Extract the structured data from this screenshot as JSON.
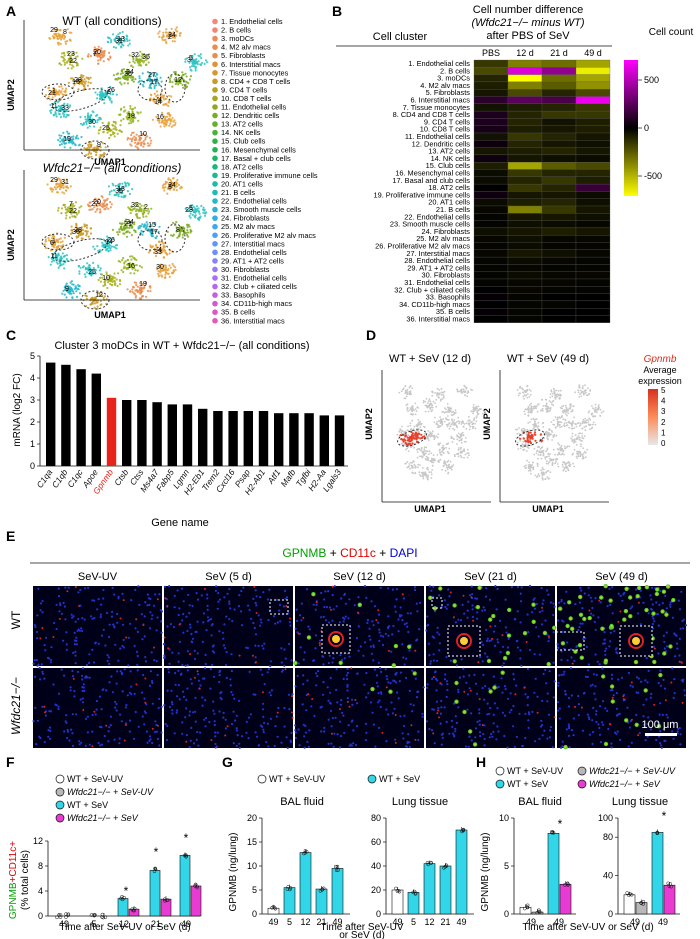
{
  "panels": {
    "A": "A",
    "B": "B",
    "C": "C",
    "D": "D",
    "E": "E",
    "F": "F",
    "G": "G",
    "H": "H"
  },
  "panelA": {
    "title_top": "WT (all conditions)",
    "title_bottom": "Wfdc21−/− (all conditions)",
    "xlabel": "UMAP1",
    "ylabel": "UMAP2",
    "legend": [
      "1. Endothelial cells",
      "2. B cells",
      "3. moDCs",
      "4. M2 alv macs",
      "5. Fibroblasts",
      "6. Interstitial macs",
      "7. Tissue monocytes",
      "8. CD4 + CD8 T cells",
      "9. CD4 T cells",
      "10. CD8 T cells",
      "11. Endothelial cells",
      "12. Dendritic cells",
      "13. AT2 cells",
      "14. NK cells",
      "15. Club cells",
      "16. Mesenchymal cells",
      "17. Basal + club cells",
      "18. AT2 cells",
      "19. Proliferative immune cells",
      "20. AT1 cells",
      "21. B cells",
      "22. Endothelial cells",
      "23. Smooth muscle cells",
      "24. Fibroblasts",
      "25. M2 alv macs",
      "26. Proliferative M2 alv macs",
      "27. Interstitial macs",
      "28. Endothelial cells",
      "29. AT1 + AT2 cells",
      "30. Fibroblasts",
      "31. Endothelial cells",
      "32. Club + ciliated cells",
      "33. Basophils",
      "34. CD11b-high macs",
      "35. B cells",
      "36. Interstitial macs"
    ],
    "legend_colors": [
      "#f4877a",
      "#f0876c",
      "#ec8a5e",
      "#e98d4f",
      "#e59043",
      "#df9338",
      "#d6972d",
      "#c99b26",
      "#b9a022",
      "#a7a41f",
      "#93a81e",
      "#7eab22",
      "#67ae2b",
      "#4db135",
      "#2fb443",
      "#1db653",
      "#1ab866",
      "#1ab97b",
      "#1cba90",
      "#1fbaa5",
      "#22b9b8",
      "#25b7c9",
      "#2ab3d7",
      "#33aee3",
      "#3fa8ec",
      "#4da0f3",
      "#5e97f7",
      "#718dfa",
      "#8483fb",
      "#9678f9",
      "#a86ef4",
      "#b865ed",
      "#c65ee3",
      "#d259d6",
      "#dc56c8",
      "#e357b8"
    ],
    "labels_top": [
      "29",
      "13",
      "32",
      "24",
      "5",
      "22",
      "20",
      "17",
      "28",
      "34",
      "1",
      "26",
      "4",
      "11",
      "18",
      "16",
      "30",
      "25",
      "10",
      "19",
      "9",
      "12",
      "8",
      "31",
      "35",
      "2",
      "3",
      "23",
      "7",
      "27",
      "15",
      "36",
      "21",
      "6",
      "14",
      "33"
    ],
    "labels_bottom": [
      "29",
      "13",
      "32",
      "24",
      "5",
      "22",
      "20",
      "17",
      "28",
      "34",
      "1",
      "26",
      "4",
      "11",
      "16",
      "30",
      "25",
      "10",
      "19",
      "9",
      "12",
      "8",
      "31",
      "35",
      "2",
      "3",
      "23",
      "7",
      "27",
      "15",
      "36",
      "21",
      "6",
      "14",
      "33"
    ]
  },
  "panelB": {
    "header_cluster": "Cell cluster",
    "header_diff_line1": "Cell number difference",
    "header_diff_line2": "(Wfdc21−/− minus WT)",
    "header_diff_line3": "after PBS of SeV",
    "header_count": "Cell count",
    "columns": [
      "PBS",
      "12 d",
      "21 d",
      "49 d"
    ],
    "scale_ticks": [
      "500",
      "0",
      "-500"
    ]
  },
  "panelC": {
    "title": "Cluster 3 moDCs in WT + Wfdc21−/− (all conditions)",
    "ylabel": "mRNA (log2 FC)",
    "xlabel": "Gene name",
    "yticks": [
      "0",
      "1",
      "2",
      "3",
      "4",
      "5"
    ]
  },
  "panelD": {
    "title_left": "WT + SeV (12 d)",
    "title_right": "WT + SeV (49 d)",
    "xlabel": "UMAP1",
    "ylabel": "UMAP2",
    "legend_title": "Gpnmb",
    "legend_sub1": "Average",
    "legend_sub2": "expression",
    "legend_ticks": [
      "5",
      "4",
      "3",
      "2",
      "1",
      "0"
    ]
  },
  "panelE": {
    "title_g": "GPNMB",
    "title_plus1": " + ",
    "title_r": "CD11c",
    "title_plus2": " + ",
    "title_b": "DAPI",
    "columns": [
      "SeV-UV",
      "SeV (5 d)",
      "SeV (12 d)",
      "SeV (21 d)",
      "SeV (49 d)"
    ],
    "rows": [
      "WT",
      "Wfdc21−/−"
    ],
    "scalebar": "100 μm"
  },
  "panelF": {
    "legend": [
      "WT + SeV-UV",
      "Wfdc21−/− + SeV-UV",
      "WT + SeV",
      "Wfdc21−/− + SeV"
    ],
    "ylabel_g": "GPNMB",
    "ylabel_r": "+CD11c+",
    "ylabel_rest": "(% total cells)",
    "xlabel": "Time after SeV-UV or SeV (d)",
    "yticks": [
      "0",
      "4",
      "8",
      "12"
    ],
    "sig": [
      "*",
      "*",
      "*"
    ]
  },
  "panelG": {
    "legend": [
      "WT + SeV-UV",
      "WT + SeV"
    ],
    "sub_left": "BAL fluid",
    "sub_right": "Lung tissue",
    "ylabel": "GPNMB (ng/lung)",
    "xlabel_line1": "Time after SeV-UV",
    "xlabel_line2": "or SeV (d)",
    "yticks_left": [
      "0",
      "5",
      "10",
      "15",
      "20"
    ],
    "yticks_right": [
      "0",
      "20",
      "40",
      "60",
      "80"
    ]
  },
  "panelH": {
    "legend": [
      "WT + SeV-UV",
      "Wfdc21−/− + SeV-UV",
      "WT + SeV",
      "Wfdc21−/− + SeV"
    ],
    "sub_left": "BAL fluid",
    "sub_right": "Lung tissue",
    "ylabel": "GPNMB (ng/lung)",
    "xlabel": "Time after SeV-UV or SeV (d)",
    "yticks_left": [
      "0",
      "5",
      "10"
    ],
    "yticks_right": [
      "0",
      "40",
      "80",
      "100"
    ],
    "sig": [
      "*",
      "*"
    ]
  },
  "chart_data": [
    {
      "type": "heatmap",
      "panel": "B",
      "rows": [
        "1. Endothelial cells",
        "2. B cells",
        "3. moDCs",
        "4. M2 alv macs",
        "5. Fibroblasts",
        "6. Interstitial macs",
        "7. Tissue monocytes",
        "8. CD4 and CD8 T cells",
        "9. CD4 T cells",
        "10. CD8 T cells",
        "11. Endothelial cells",
        "12. Dendritic cells",
        "13. AT2 cells",
        "14. NK cells",
        "15. Club cells",
        "16. Mesenchymal cells",
        "17. Basal and club cells",
        "18. AT2 cells",
        "19. Proliferative immune cells",
        "20. AT1 cells",
        "21. B cells",
        "22. Endothelial cells",
        "23. Smooth muscle cells",
        "24. Fibroblasts",
        "25. M2 alv macs",
        "26. Proliferative M2 alv macs",
        "27. Interstitial macs",
        "28. Endothelial cells",
        "29. AT1 + AT2 cells",
        "30. Fibroblasts",
        "31. Endothelial cells",
        "32. Club + ciliated cells",
        "33. Basophils",
        "34. CD11b-high macs",
        "35. B cells",
        "36. Interstitial macs"
      ],
      "columns": [
        "PBS",
        "12 d",
        "21 d",
        "49 d"
      ],
      "values": [
        [
          -150,
          -350,
          -300,
          -450
        ],
        [
          -200,
          600,
          400,
          -650
        ],
        [
          -100,
          -700,
          -300,
          -450
        ],
        [
          -80,
          -350,
          -250,
          -400
        ],
        [
          -60,
          -200,
          -100,
          -200
        ],
        [
          120,
          250,
          200,
          650
        ],
        [
          -50,
          -80,
          -100,
          -150
        ],
        [
          80,
          -100,
          -150,
          -150
        ],
        [
          80,
          -100,
          -50,
          -80
        ],
        [
          60,
          -80,
          -60,
          -80
        ],
        [
          -50,
          -150,
          -100,
          -60
        ],
        [
          30,
          -100,
          -60,
          -40
        ],
        [
          -60,
          -80,
          -100,
          -60
        ],
        [
          40,
          -60,
          -40,
          -30
        ],
        [
          -80,
          -450,
          -250,
          -200
        ],
        [
          -30,
          -150,
          -100,
          -100
        ],
        [
          -30,
          -100,
          -150,
          -80
        ],
        [
          0,
          -150,
          -100,
          150
        ],
        [
          40,
          -60,
          -60,
          -30
        ],
        [
          -30,
          -80,
          -100,
          -40
        ],
        [
          -20,
          -350,
          -150,
          -60
        ],
        [
          -10,
          -60,
          -60,
          -40
        ],
        [
          -10,
          -40,
          -30,
          -20
        ],
        [
          -40,
          -60,
          -80,
          -60
        ],
        [
          -20,
          -40,
          -20,
          -20
        ],
        [
          -10,
          -30,
          -10,
          -10
        ],
        [
          -20,
          -60,
          -40,
          -20
        ],
        [
          -10,
          -30,
          -20,
          -10
        ],
        [
          -10,
          -20,
          -10,
          -10
        ],
        [
          -10,
          -30,
          -20,
          -20
        ],
        [
          -10,
          -20,
          -20,
          -10
        ],
        [
          0,
          -20,
          -10,
          -10
        ],
        [
          10,
          -10,
          0,
          0
        ],
        [
          0,
          -10,
          -10,
          0
        ],
        [
          10,
          -10,
          0,
          0
        ],
        [
          0,
          -10,
          0,
          0
        ]
      ],
      "scale": [
        -700,
        700
      ]
    },
    {
      "type": "bar",
      "panel": "C",
      "categories": [
        "C1qa",
        "C1qb",
        "C1qc",
        "Apoe",
        "Gpnmb",
        "Ctsb",
        "Ctss",
        "Ms4a7",
        "Fabp5",
        "Lgmn",
        "H2-Eb1",
        "Trem2",
        "Cxcl16",
        "Psap",
        "H2-Ab1",
        "Atf1",
        "Mafb",
        "Tgfbi",
        "H2-Aa",
        "Lgals3"
      ],
      "highlight": "Gpnmb",
      "values": [
        4.7,
        4.6,
        4.4,
        4.2,
        3.1,
        3.0,
        3.0,
        2.9,
        2.8,
        2.8,
        2.6,
        2.5,
        2.5,
        2.5,
        2.5,
        2.4,
        2.4,
        2.4,
        2.3,
        2.3
      ],
      "ylim": [
        0,
        5
      ]
    },
    {
      "type": "bar",
      "panel": "F",
      "categories": [
        "49",
        "5",
        "12",
        "21",
        "49"
      ],
      "series": [
        {
          "name": "WT + SeV-UV",
          "values": [
            0,
            null,
            null,
            null,
            null
          ]
        },
        {
          "name": "Wfdc21−/− + SeV-UV",
          "values": [
            0,
            null,
            null,
            null,
            null
          ]
        },
        {
          "name": "WT + SeV",
          "values": [
            null,
            0,
            2.8,
            7.3,
            9.7
          ]
        },
        {
          "name": "Wfdc21−/− + SeV",
          "values": [
            null,
            0,
            1.1,
            2.7,
            4.8
          ]
        }
      ],
      "ylim": [
        0,
        12
      ]
    },
    {
      "type": "bar",
      "panel": "G",
      "subplots": [
        {
          "categories": [
            "49",
            "5",
            "12",
            "21",
            "49"
          ],
          "values": [
            1.2,
            5.5,
            12.8,
            5.2,
            9.5
          ],
          "ylim": [
            0,
            20
          ]
        },
        {
          "categories": [
            "49",
            "5",
            "12",
            "21",
            "49"
          ],
          "values": [
            20,
            18,
            42,
            40,
            70
          ],
          "ylim": [
            0,
            80
          ]
        }
      ],
      "series_names": [
        "WT + SeV-UV",
        "WT + SeV"
      ]
    },
    {
      "type": "bar",
      "panel": "H",
      "subplots": [
        {
          "categories": [
            "49",
            "49"
          ],
          "values": [
            [
              0.7,
              0.2
            ],
            [
              8.4,
              3.1
            ]
          ],
          "ylim": [
            0,
            10
          ]
        },
        {
          "categories": [
            "49",
            "49"
          ],
          "values": [
            [
              20,
              12
            ],
            [
              85,
              30
            ]
          ],
          "ylim": [
            0,
            100
          ]
        }
      ],
      "series_names": [
        "WT + SeV-UV",
        "Wfdc21−/− + SeV-UV",
        "WT + SeV",
        "Wfdc21−/− + SeV"
      ]
    }
  ]
}
